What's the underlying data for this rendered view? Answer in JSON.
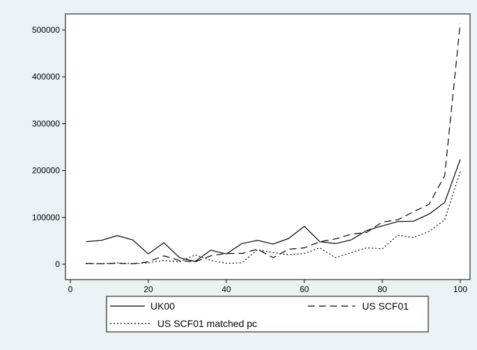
{
  "chart_data": {
    "type": "line",
    "title": "",
    "xlabel": "",
    "ylabel": "",
    "xlim": [
      0,
      100
    ],
    "ylim": [
      0,
      500000
    ],
    "xticks": [
      0,
      20,
      40,
      60,
      80,
      100
    ],
    "yticks": [
      0,
      100000,
      200000,
      300000,
      400000,
      500000
    ],
    "xtick_labels": [
      "0",
      "20",
      "40",
      "60",
      "80",
      "100"
    ],
    "ytick_labels": [
      "0",
      "100000",
      "200000",
      "300000",
      "400000",
      "500000"
    ],
    "grid": false,
    "legend_position": "bottom",
    "series": [
      {
        "name": "UK00",
        "dash": "solid",
        "x": [
          4,
          8,
          12,
          16,
          20,
          24,
          28,
          32,
          36,
          40,
          44,
          48,
          52,
          56,
          60,
          64,
          68,
          72,
          76,
          80,
          84,
          88,
          92,
          96,
          100
        ],
        "y": [
          48000,
          51000,
          61000,
          52000,
          22000,
          46000,
          14000,
          6000,
          30000,
          22000,
          44000,
          51000,
          43000,
          55000,
          81000,
          48000,
          44000,
          52000,
          72000,
          82000,
          91000,
          92000,
          107000,
          132000,
          224000
        ]
      },
      {
        "name": "US SCF01",
        "dash": "long-dash",
        "x": [
          4,
          8,
          12,
          16,
          20,
          24,
          28,
          32,
          36,
          40,
          44,
          48,
          52,
          56,
          60,
          64,
          68,
          72,
          76,
          80,
          84,
          88,
          92,
          96,
          100
        ],
        "y": [
          2000,
          1000,
          2000,
          1000,
          5000,
          18000,
          8000,
          5000,
          18000,
          23000,
          23000,
          32000,
          14000,
          32000,
          35000,
          48000,
          54000,
          64000,
          68000,
          90000,
          95000,
          112000,
          128000,
          189000,
          515000
        ]
      },
      {
        "name": "US SCF01 matched pc",
        "dash": "dotted",
        "x": [
          4,
          8,
          12,
          16,
          20,
          24,
          28,
          32,
          36,
          40,
          44,
          48,
          52,
          56,
          60,
          64,
          68,
          72,
          76,
          80,
          84,
          88,
          92,
          96,
          100
        ],
        "y": [
          1000,
          1000,
          3000,
          1000,
          3000,
          8000,
          5000,
          20000,
          8000,
          2000,
          3000,
          31000,
          25000,
          20000,
          23000,
          35000,
          14000,
          25000,
          35000,
          33000,
          62000,
          57000,
          70000,
          95000,
          198000
        ]
      }
    ]
  }
}
